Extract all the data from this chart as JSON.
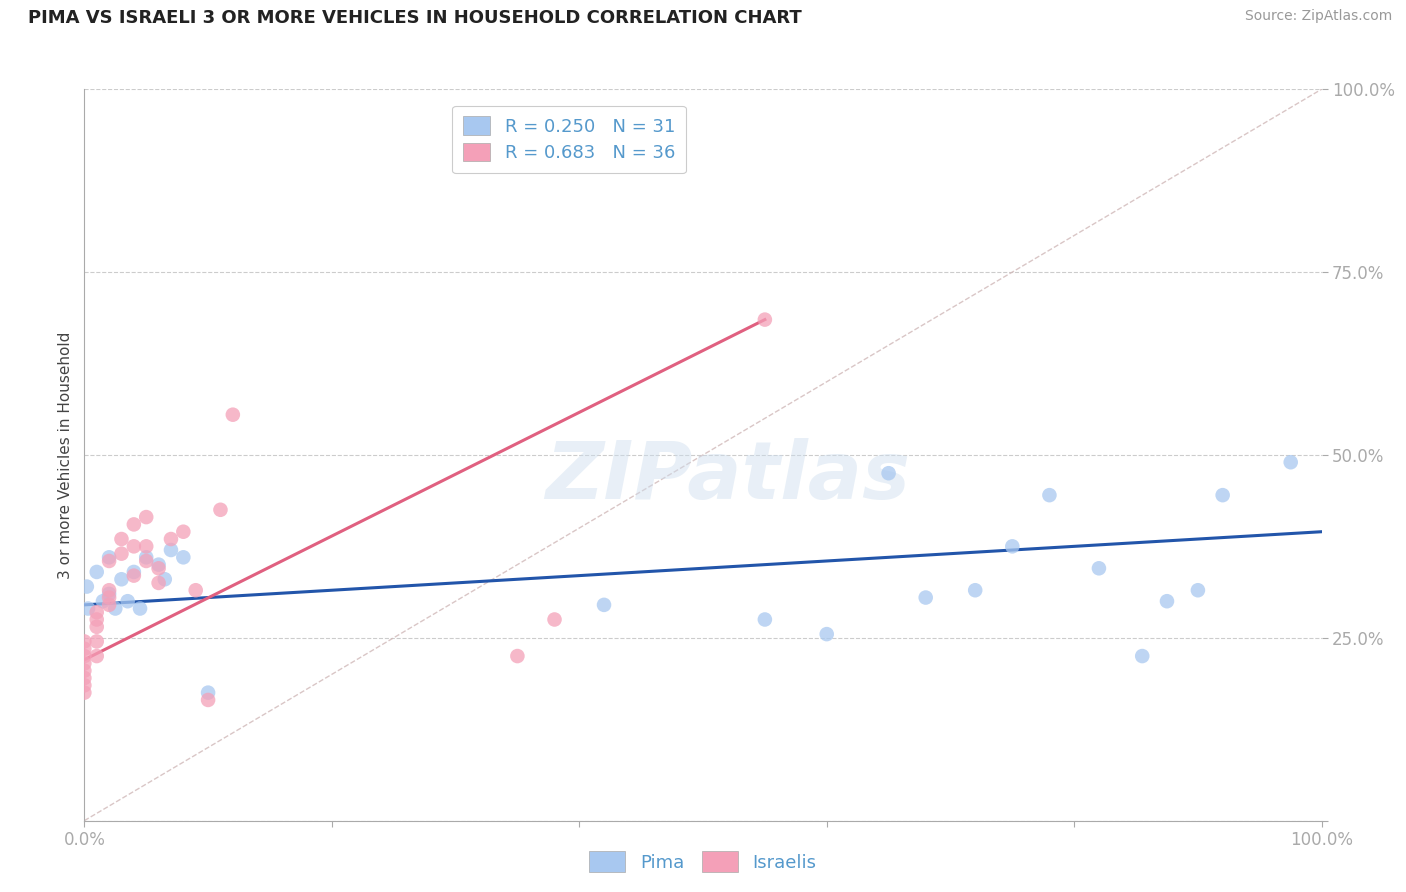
{
  "title": "PIMA VS ISRAELI 3 OR MORE VEHICLES IN HOUSEHOLD CORRELATION CHART",
  "source_text": "Source: ZipAtlas.com",
  "ylabel": "3 or more Vehicles in Household",
  "background_color": "#ffffff",
  "grid_color": "#cccccc",
  "watermark": "ZIPatlas",
  "pima_color": "#a8c8f0",
  "israelis_color": "#f4a0b8",
  "pima_line_color": "#2255aa",
  "israelis_line_color": "#e06080",
  "diagonal_color": "#d0b8b8",
  "legend_r_pima": "R = 0.250",
  "legend_n_pima": "N = 31",
  "legend_r_israelis": "R = 0.683",
  "legend_n_israelis": "N = 36",
  "xlim": [
    0.0,
    1.0
  ],
  "ylim": [
    0.0,
    1.0
  ],
  "pima_x": [
    0.002,
    0.003,
    0.01,
    0.015,
    0.02,
    0.02,
    0.025,
    0.03,
    0.035,
    0.04,
    0.045,
    0.05,
    0.06,
    0.065,
    0.07,
    0.08,
    0.1,
    0.42,
    0.55,
    0.6,
    0.65,
    0.68,
    0.72,
    0.75,
    0.78,
    0.82,
    0.855,
    0.875,
    0.9,
    0.92,
    0.975
  ],
  "pima_y": [
    0.32,
    0.29,
    0.34,
    0.3,
    0.36,
    0.31,
    0.29,
    0.33,
    0.3,
    0.34,
    0.29,
    0.36,
    0.35,
    0.33,
    0.37,
    0.36,
    0.175,
    0.295,
    0.275,
    0.255,
    0.475,
    0.305,
    0.315,
    0.375,
    0.445,
    0.345,
    0.225,
    0.3,
    0.315,
    0.445,
    0.49
  ],
  "israelis_x": [
    0.0,
    0.0,
    0.0,
    0.0,
    0.0,
    0.0,
    0.0,
    0.0,
    0.01,
    0.01,
    0.01,
    0.01,
    0.01,
    0.02,
    0.02,
    0.02,
    0.02,
    0.03,
    0.03,
    0.04,
    0.04,
    0.04,
    0.05,
    0.05,
    0.05,
    0.06,
    0.06,
    0.07,
    0.08,
    0.09,
    0.1,
    0.11,
    0.12,
    0.35,
    0.38,
    0.55
  ],
  "israelis_y": [
    0.215,
    0.205,
    0.195,
    0.185,
    0.175,
    0.245,
    0.225,
    0.235,
    0.275,
    0.265,
    0.285,
    0.245,
    0.225,
    0.305,
    0.295,
    0.315,
    0.355,
    0.365,
    0.385,
    0.405,
    0.335,
    0.375,
    0.375,
    0.415,
    0.355,
    0.345,
    0.325,
    0.385,
    0.395,
    0.315,
    0.165,
    0.425,
    0.555,
    0.225,
    0.275,
    0.685
  ],
  "pima_trend": [
    0.0,
    1.0,
    0.295,
    0.395
  ],
  "israelis_trend": [
    0.0,
    0.55,
    0.22,
    0.685
  ],
  "diag_line": [
    0.0,
    1.0,
    0.0,
    1.0
  ]
}
